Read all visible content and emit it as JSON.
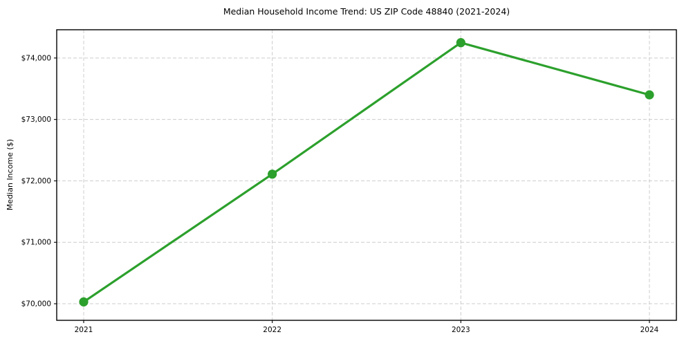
{
  "chart_data": {
    "type": "line",
    "title": "Median Household Income Trend: US ZIP Code 48840 (2021-2024)",
    "xlabel": "",
    "ylabel": "Median Income ($)",
    "x": [
      2021,
      2022,
      2023,
      2024
    ],
    "x_tick_labels": [
      "2021",
      "2022",
      "2023",
      "2024"
    ],
    "series": [
      {
        "name": "Median Household Income",
        "values": [
          70030,
          72110,
          74250,
          73400
        ]
      }
    ],
    "y_ticks": [
      70000,
      71000,
      72000,
      73000,
      74000
    ],
    "y_tick_labels": [
      "$70,000",
      "$71,000",
      "$72,000",
      "$73,000",
      "$74,000"
    ],
    "ylim": [
      69730,
      74460
    ],
    "grid": true,
    "grid_style": "dashed",
    "legend_position": "none",
    "line_color": "#2ca02c",
    "marker": "circle",
    "marker_radius": 6.6,
    "grid_color": "#cccccc",
    "background_color": "#ffffff",
    "frame_color": "#000000"
  }
}
